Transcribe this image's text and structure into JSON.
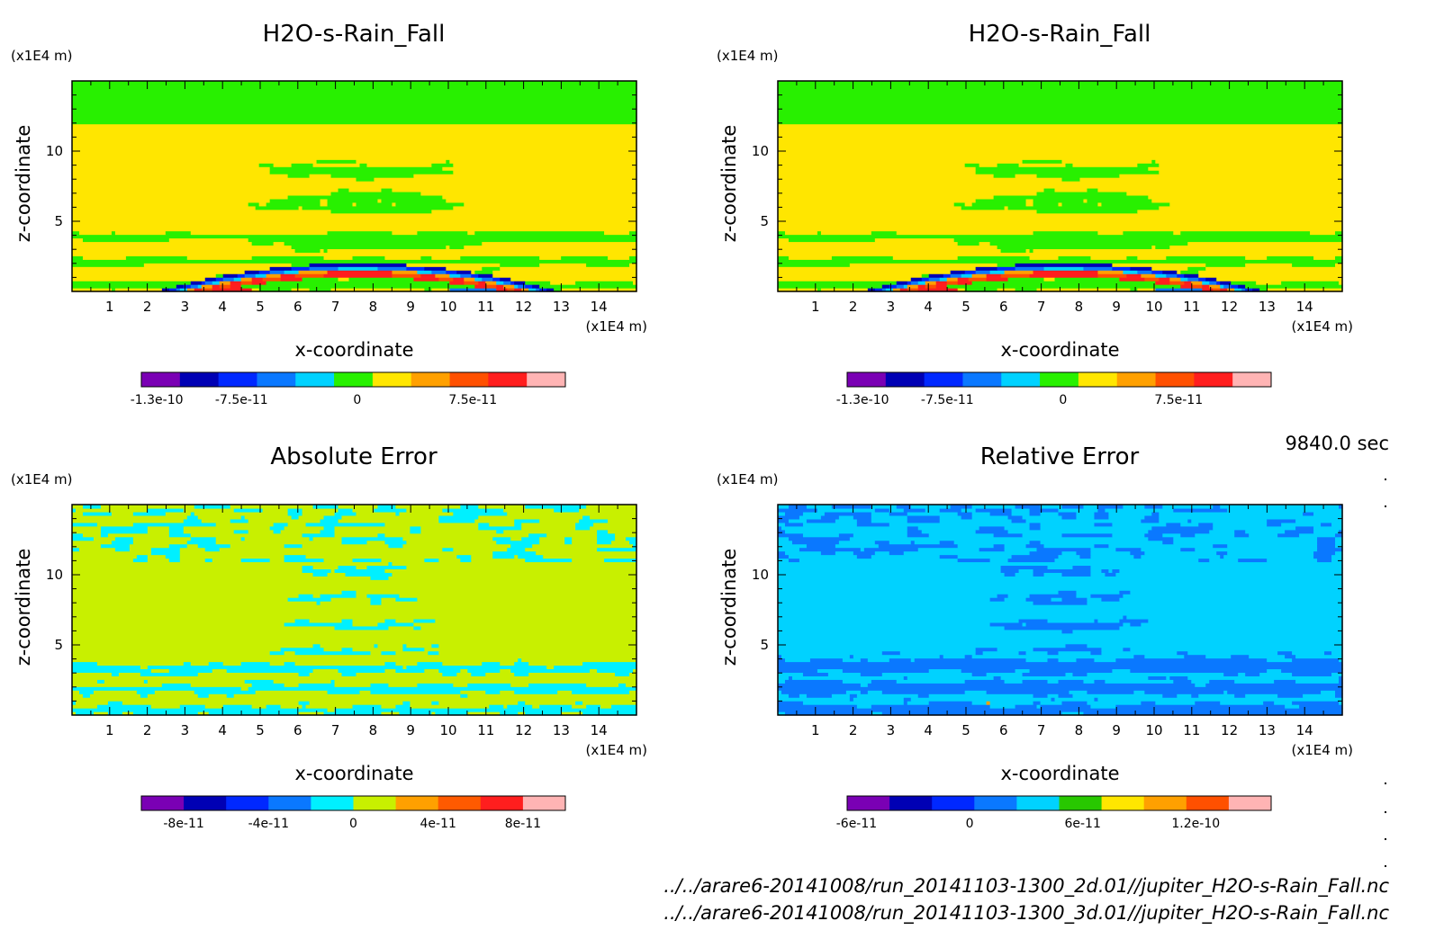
{
  "figure": {
    "time_label": "9840.0 sec",
    "file_paths": [
      "../../arare6-20141008/run_20141103-1300_2d.01//jupiter_H2O-s-Rain_Fall.nc",
      "../../arare6-20141008/run_20141103-1300_3d.01//jupiter_H2O-s-Rain_Fall.nc"
    ]
  },
  "chart_data": [
    {
      "type": "heatmap",
      "title": "H2O-s-Rain_Fall",
      "xlabel": "x-coordinate",
      "ylabel": "z-coordinate",
      "x_unit": "(x1E4 m)",
      "y_unit": "(x1E4 m)",
      "xlim": [
        0,
        15
      ],
      "ylim": [
        0,
        15
      ],
      "xticks": [
        1,
        2,
        3,
        4,
        5,
        6,
        7,
        8,
        9,
        10,
        11,
        12,
        13,
        14
      ],
      "yticks": [
        5,
        10
      ],
      "colorbar": {
        "levels": 11,
        "colors": [
          "#7a00b4",
          "#0000b4",
          "#0028ff",
          "#0a78ff",
          "#00d2ff",
          "#28f000",
          "#ffe600",
          "#ffa000",
          "#ff5000",
          "#ff1e1e",
          "#ffb4b4"
        ],
        "tick_labels": [
          "-1.3e-10",
          "-7.5e-11",
          "0",
          "7.5e-11"
        ],
        "tick_values": [
          -1.3e-10,
          -7.5e-11,
          0,
          7.5e-11
        ],
        "range": [
          -1.4e-10,
          1.35e-10
        ]
      },
      "pattern": "rainfall"
    },
    {
      "type": "heatmap",
      "title": "H2O-s-Rain_Fall",
      "xlabel": "x-coordinate",
      "ylabel": "z-coordinate",
      "x_unit": "(x1E4 m)",
      "y_unit": "(x1E4 m)",
      "xlim": [
        0,
        15
      ],
      "ylim": [
        0,
        15
      ],
      "xticks": [
        1,
        2,
        3,
        4,
        5,
        6,
        7,
        8,
        9,
        10,
        11,
        12,
        13,
        14
      ],
      "yticks": [
        5,
        10
      ],
      "colorbar": {
        "levels": 11,
        "colors": [
          "#7a00b4",
          "#0000b4",
          "#0028ff",
          "#0a78ff",
          "#00d2ff",
          "#28f000",
          "#ffe600",
          "#ffa000",
          "#ff5000",
          "#ff1e1e",
          "#ffb4b4"
        ],
        "tick_labels": [
          "-1.3e-10",
          "-7.5e-11",
          "0",
          "7.5e-11"
        ],
        "tick_values": [
          -1.3e-10,
          -7.5e-11,
          0,
          7.5e-11
        ],
        "range": [
          -1.4e-10,
          1.35e-10
        ]
      },
      "pattern": "rainfall"
    },
    {
      "type": "heatmap",
      "title": "Absolute Error",
      "xlabel": "x-coordinate",
      "ylabel": "z-coordinate",
      "x_unit": "(x1E4 m)",
      "y_unit": "(x1E4 m)",
      "xlim": [
        0,
        15
      ],
      "ylim": [
        0,
        15
      ],
      "xticks": [
        1,
        2,
        3,
        4,
        5,
        6,
        7,
        8,
        9,
        10,
        11,
        12,
        13,
        14
      ],
      "yticks": [
        5,
        10
      ],
      "colorbar": {
        "levels": 10,
        "colors": [
          "#7a00b4",
          "#0000b4",
          "#0028ff",
          "#0a78ff",
          "#00f0ff",
          "#c8f000",
          "#ffa000",
          "#ff5a00",
          "#ff1e1e",
          "#ffb4b4"
        ],
        "tick_labels": [
          "-8e-11",
          "-4e-11",
          "0",
          "4e-11",
          "8e-11"
        ],
        "tick_values": [
          -8e-11,
          -4e-11,
          0,
          4e-11,
          8e-11
        ],
        "range": [
          -1e-10,
          1e-10
        ]
      },
      "pattern": "abs_error"
    },
    {
      "type": "heatmap",
      "title": "Relative Error",
      "xlabel": "x-coordinate",
      "ylabel": "z-coordinate",
      "x_unit": "(x1E4 m)",
      "y_unit": "(x1E4 m)",
      "xlim": [
        0,
        15
      ],
      "ylim": [
        0,
        15
      ],
      "xticks": [
        1,
        2,
        3,
        4,
        5,
        6,
        7,
        8,
        9,
        10,
        11,
        12,
        13,
        14
      ],
      "yticks": [
        5,
        10
      ],
      "colorbar": {
        "levels": 10,
        "colors": [
          "#7a00b4",
          "#0000b4",
          "#0028ff",
          "#0a78ff",
          "#00d2ff",
          "#28c800",
          "#ffe600",
          "#ffa000",
          "#ff5000",
          "#ffb4b4"
        ],
        "tick_labels": [
          "-6e-11",
          "0",
          "6e-11",
          "1.2e-10"
        ],
        "tick_values": [
          -6e-11,
          0,
          6e-11,
          1.2e-10
        ],
        "range": [
          -6.5e-11,
          1.6e-10
        ]
      },
      "pattern": "rel_error"
    }
  ]
}
